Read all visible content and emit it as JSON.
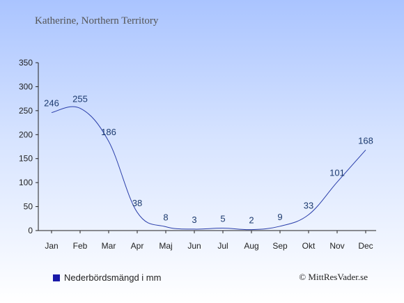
{
  "header": {
    "subtitle": "Katherine, Northern Territory"
  },
  "legend": {
    "label": "Nederbördsmängd i mm",
    "color": "#1a1aa8"
  },
  "footer": {
    "copyright": "© MittResVader.se"
  },
  "chart_data": {
    "type": "line",
    "title": "",
    "xlabel": "",
    "ylabel": "",
    "categories": [
      "Jan",
      "Feb",
      "Mar",
      "Apr",
      "Maj",
      "Jun",
      "Jul",
      "Aug",
      "Sep",
      "Okt",
      "Nov",
      "Dec"
    ],
    "series": [
      {
        "name": "Nederbördsmängd i mm",
        "values": [
          246,
          255,
          186,
          38,
          8,
          3,
          5,
          2,
          9,
          33,
          101,
          168
        ],
        "color": "#2a3eaa"
      }
    ],
    "ylim": [
      0,
      350
    ],
    "yticks": [
      0,
      50,
      100,
      150,
      200,
      250,
      300,
      350
    ],
    "grid": false,
    "legend_position": "bottom-left",
    "data_labels": true
  }
}
